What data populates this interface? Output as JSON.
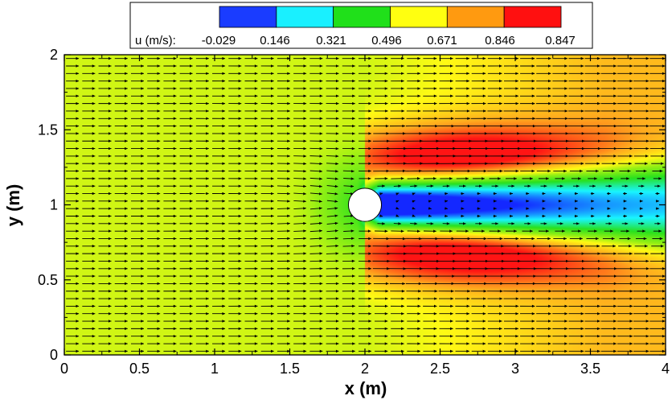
{
  "chart_data": {
    "type": "heatmap",
    "xlabel": "x (m)",
    "ylabel": "y (m)",
    "xlim": [
      0,
      4
    ],
    "ylim": [
      0,
      2
    ],
    "x_ticks": [
      "0",
      "0.5",
      "1",
      "1.5",
      "2",
      "2.5",
      "3",
      "3.5",
      "4"
    ],
    "y_ticks": [
      "0",
      "0.5",
      "1",
      "1.5",
      "2"
    ],
    "colorbar": {
      "label": "u (m/s):",
      "levels": [
        "-0.029",
        "0.146",
        "0.321",
        "0.496",
        "0.671",
        "0.846",
        "0.847"
      ],
      "colors": [
        "#1a3cff",
        "#19f0ff",
        "#20e01a",
        "#ffff10",
        "#ff9a10",
        "#ff1010"
      ],
      "placement": "top"
    },
    "field": {
      "variable": "u (m/s)",
      "freestream_u": 0.6,
      "cylinder": {
        "center": [
          2.0,
          1.0
        ],
        "radius": 0.11
      },
      "wake": "low-velocity wake extending downstream of the cylinder along y = 1",
      "acceleration": "high-velocity regions above and below the cylinder for x > 2"
    },
    "vectors": {
      "type": "quiver",
      "rows": 40,
      "columns": 37
    }
  }
}
